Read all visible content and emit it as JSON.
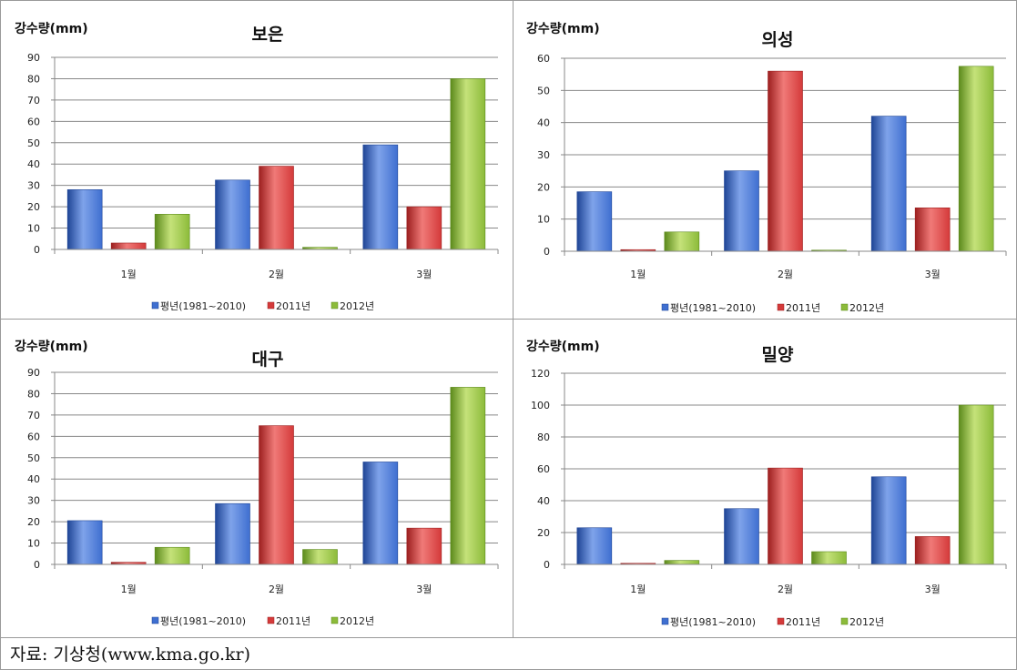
{
  "chart_data": [
    {
      "type": "bar",
      "title": "보은",
      "ylabel": "강수량(mm)",
      "categories": [
        "1월",
        "2월",
        "3월"
      ],
      "ylim": [
        0,
        90
      ],
      "ytick_step": 10,
      "grid": true,
      "legend": "bottom",
      "series": [
        {
          "name": "평년(1981~2010)",
          "values": [
            28,
            32.5,
            49
          ]
        },
        {
          "name": "2011년",
          "values": [
            3,
            39,
            20
          ]
        },
        {
          "name": "2012년",
          "values": [
            16.5,
            1,
            80
          ]
        }
      ]
    },
    {
      "type": "bar",
      "title": "의성",
      "ylabel": "강수량(mm)",
      "categories": [
        "1월",
        "2월",
        "3월"
      ],
      "ylim": [
        0,
        60
      ],
      "ytick_step": 10,
      "grid": true,
      "legend": "bottom",
      "series": [
        {
          "name": "평년(1981~2010)",
          "values": [
            18.5,
            25,
            42
          ]
        },
        {
          "name": "2011년",
          "values": [
            0.5,
            56,
            13.5
          ]
        },
        {
          "name": "2012년",
          "values": [
            6,
            0.3,
            57.5
          ]
        }
      ]
    },
    {
      "type": "bar",
      "title": "대구",
      "ylabel": "강수량(mm)",
      "categories": [
        "1월",
        "2월",
        "3월"
      ],
      "ylim": [
        0,
        90
      ],
      "ytick_step": 10,
      "grid": true,
      "legend": "bottom",
      "series": [
        {
          "name": "평년(1981~2010)",
          "values": [
            20.5,
            28.5,
            48
          ]
        },
        {
          "name": "2011년",
          "values": [
            1,
            65,
            17
          ]
        },
        {
          "name": "2012년",
          "values": [
            8,
            7,
            83
          ]
        }
      ]
    },
    {
      "type": "bar",
      "title": "밀양",
      "ylabel": "강수량(mm)",
      "categories": [
        "1월",
        "2월",
        "3월"
      ],
      "ylim": [
        0,
        120
      ],
      "ytick_step": 20,
      "grid": true,
      "legend": "bottom",
      "series": [
        {
          "name": "평년(1981~2010)",
          "values": [
            23,
            35,
            55
          ]
        },
        {
          "name": "2011년",
          "values": [
            0,
            60.5,
            17.5
          ]
        },
        {
          "name": "2012년",
          "values": [
            2.5,
            8,
            100
          ]
        }
      ]
    }
  ],
  "colors": {
    "series": [
      "#3f6fd0",
      "#d43a3a",
      "#8cbb3a"
    ],
    "series_light": [
      "#7fa3ea",
      "#f07a78",
      "#c5e27a"
    ],
    "series_dark": [
      "#1f4596",
      "#9c1f1f",
      "#5c8a1c"
    ],
    "grid": "#888888"
  },
  "source": "자료: 기상청(www.kma.go.kr)"
}
